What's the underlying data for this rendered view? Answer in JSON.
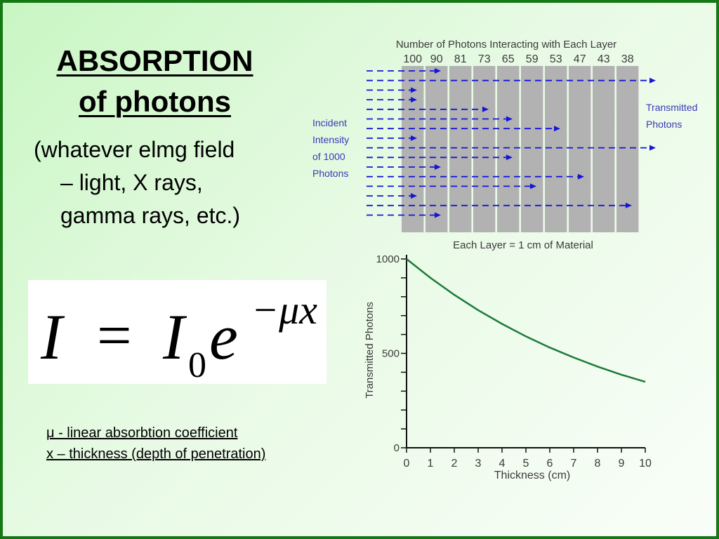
{
  "title": {
    "line1": "ABSORPTION",
    "line2": "of photons"
  },
  "description": {
    "line1": "(whatever elmg field",
    "line2": "– light, X rays,",
    "line3": "gamma rays, etc.)"
  },
  "formula": {
    "lhs": "I",
    "equals": "=",
    "base": "I",
    "subscript": "0",
    "exp_base": "e",
    "exponent": "−μx"
  },
  "notes": {
    "mu": "μ - linear absorbtion coefficient",
    "x": "x – thickness (depth of penetration)"
  },
  "diagram": {
    "heading": "Number of Photons Interacting with Each Layer",
    "counts": [
      "100",
      "90",
      "81",
      "73",
      "65",
      "59",
      "53",
      "47",
      "43",
      "38"
    ],
    "incident_label": [
      "Incident",
      "Intensity",
      "of 1000",
      "Photons"
    ],
    "transmitted_label": [
      "Transmitted",
      "Photons"
    ],
    "footer": "Each Layer = 1 cm of Material",
    "layer_count": 10,
    "arrow_stop_layers": [
      1,
      10,
      0,
      0,
      3,
      4,
      6,
      0,
      10,
      4,
      1,
      7,
      5,
      0,
      9,
      1
    ],
    "colors": {
      "layer": "#b2b2b2",
      "arrow": "#1515d8",
      "text": "#3a3ab5"
    }
  },
  "chart_data": {
    "type": "line",
    "xlabel": "Thickness (cm)",
    "ylabel": "Transmitted Photons",
    "x_ticks": [
      "0",
      "1",
      "2",
      "3",
      "4",
      "5",
      "6",
      "7",
      "8",
      "9",
      "10"
    ],
    "y_tick_labels": [
      "0",
      "500",
      "1000"
    ],
    "xlim": [
      0,
      10
    ],
    "ylim": [
      0,
      1000
    ],
    "series": [
      {
        "x": [
          0,
          1,
          2,
          3,
          4,
          5,
          6,
          7,
          8,
          9,
          10
        ],
        "values": [
          1000,
          900,
          810,
          729,
          656,
          590,
          531,
          478,
          430,
          387,
          349
        ]
      }
    ],
    "line_color": "#1d7a3a"
  }
}
